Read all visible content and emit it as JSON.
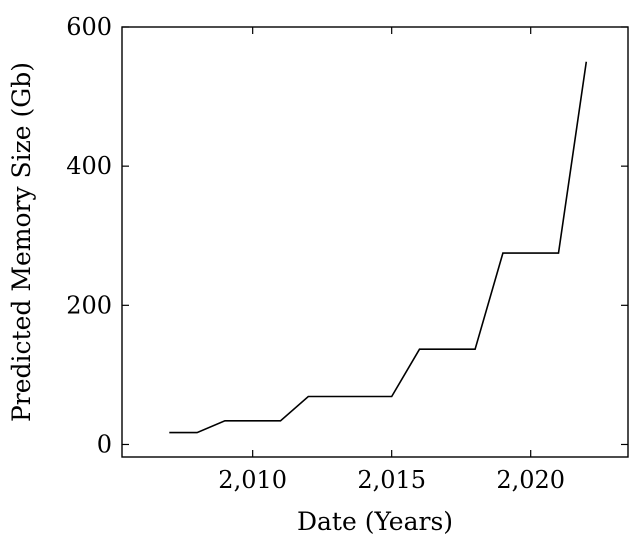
{
  "chart_data": {
    "type": "line",
    "title": "",
    "xlabel": "Date (Years)",
    "ylabel": "Predicted Memory Size (Gb)",
    "xlim": [
      2005.3,
      2023.5
    ],
    "ylim": [
      -18,
      600
    ],
    "x_ticks": [
      2010,
      2015,
      2020
    ],
    "x_tick_labels": [
      "2,010",
      "2,015",
      "2,020"
    ],
    "y_ticks": [
      0,
      200,
      400,
      600
    ],
    "y_tick_labels": [
      "0",
      "200",
      "400",
      "600"
    ],
    "grid": false,
    "series": [
      {
        "color": "#000000",
        "x": [
          2007,
          2008,
          2009,
          2010,
          2011,
          2012,
          2013,
          2014,
          2015,
          2016,
          2017,
          2018,
          2019,
          2020,
          2021,
          2022
        ],
        "y": [
          17,
          17,
          34,
          34,
          34,
          69,
          69,
          69,
          69,
          137,
          137,
          137,
          275,
          275,
          275,
          550
        ]
      }
    ]
  }
}
